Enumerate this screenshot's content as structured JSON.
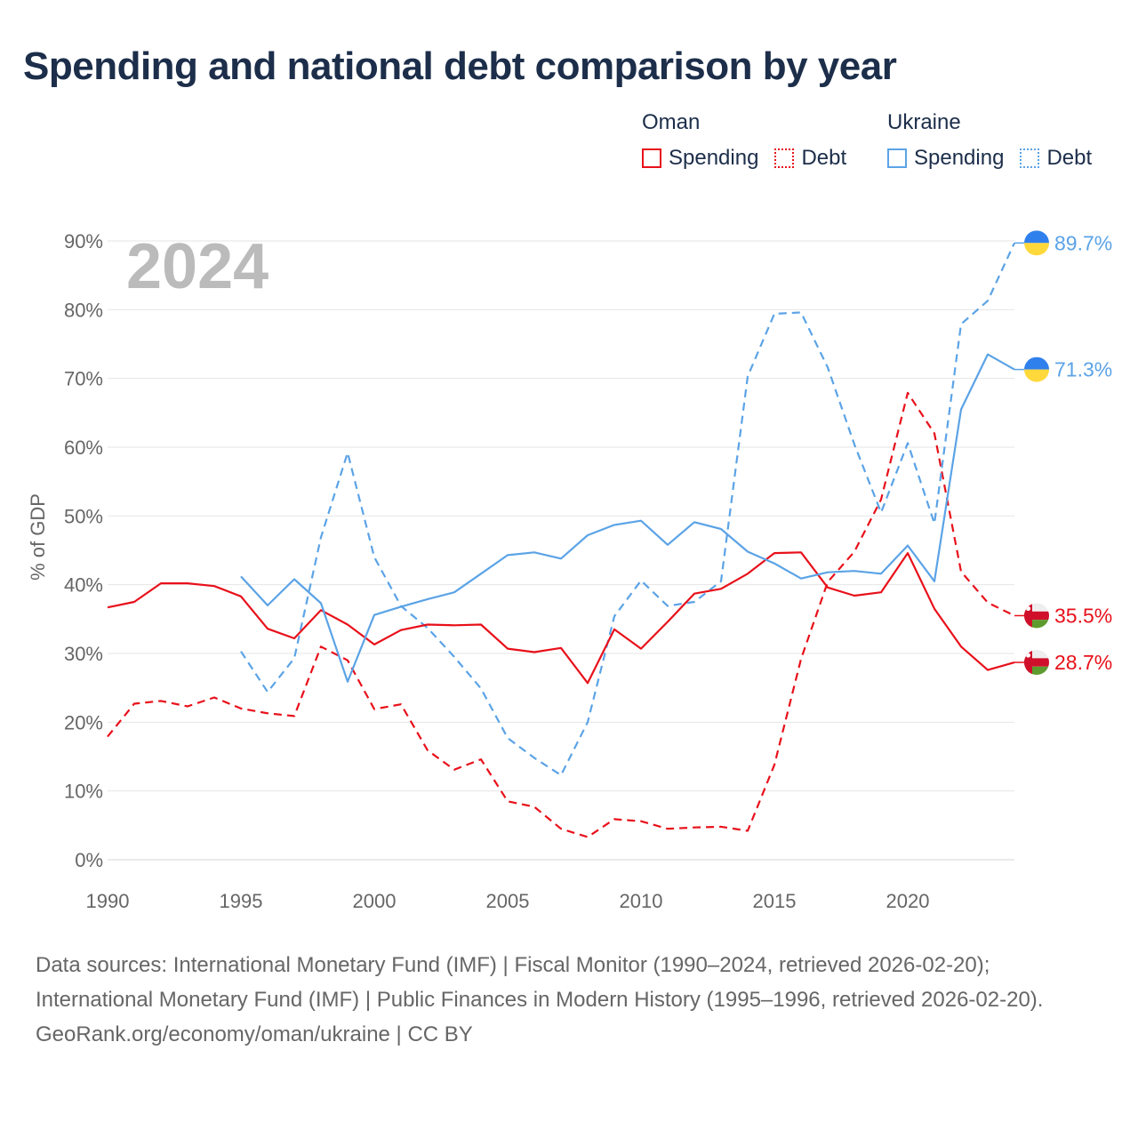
{
  "title": "Spending and national debt comparison by year",
  "legend": {
    "groups": [
      {
        "country": "Oman",
        "spending_label": "Spending",
        "debt_label": "Debt",
        "color": "#e8101a"
      },
      {
        "country": "Ukraine",
        "spending_label": "Spending",
        "debt_label": "Debt",
        "color": "#5ba3e6"
      }
    ]
  },
  "chart_data": {
    "type": "line",
    "title": "Spending and national debt comparison by year",
    "year_label": "2024",
    "ylabel": "% of GDP",
    "xlabel": "",
    "xlim": [
      1990,
      2024
    ],
    "ylim": [
      0,
      90
    ],
    "x_ticks": [
      1990,
      1995,
      2000,
      2005,
      2010,
      2015,
      2020
    ],
    "y_ticks": [
      0,
      10,
      20,
      30,
      40,
      50,
      60,
      70,
      80,
      90
    ],
    "y_tick_labels": [
      "0%",
      "10%",
      "20%",
      "30%",
      "40%",
      "50%",
      "60%",
      "70%",
      "80%",
      "90%"
    ],
    "grid": true,
    "series": [
      {
        "name": "Oman Spending",
        "country": "Oman",
        "kind": "Spending",
        "color": "#e8101a",
        "dashed": false,
        "flag": "oman",
        "end_label": "28.7%",
        "points": [
          [
            1990,
            36.7
          ],
          [
            1991,
            37.5
          ],
          [
            1992,
            40.2
          ],
          [
            1993,
            40.2
          ],
          [
            1994,
            39.8
          ],
          [
            1995,
            38.3
          ],
          [
            1996,
            33.6
          ],
          [
            1997,
            32.2
          ],
          [
            1998,
            36.3
          ],
          [
            1999,
            34.2
          ],
          [
            2000,
            31.3
          ],
          [
            2001,
            33.4
          ],
          [
            2002,
            34.2
          ],
          [
            2003,
            34.1
          ],
          [
            2004,
            34.2
          ],
          [
            2005,
            30.7
          ],
          [
            2006,
            30.2
          ],
          [
            2007,
            30.8
          ],
          [
            2008,
            25.7
          ],
          [
            2009,
            33.5
          ],
          [
            2010,
            30.7
          ],
          [
            2011,
            34.6
          ],
          [
            2012,
            38.7
          ],
          [
            2013,
            39.4
          ],
          [
            2014,
            41.6
          ],
          [
            2015,
            44.6
          ],
          [
            2016,
            44.7
          ],
          [
            2017,
            39.6
          ],
          [
            2018,
            38.4
          ],
          [
            2019,
            38.9
          ],
          [
            2020,
            44.6
          ],
          [
            2021,
            36.5
          ],
          [
            2022,
            31.0
          ],
          [
            2023,
            27.6
          ],
          [
            2024,
            28.7
          ]
        ]
      },
      {
        "name": "Oman Debt",
        "country": "Oman",
        "kind": "Debt",
        "color": "#e8101a",
        "dashed": true,
        "flag": "oman",
        "end_label": "35.5%",
        "points": [
          [
            1990,
            17.9
          ],
          [
            1991,
            22.7
          ],
          [
            1992,
            23.1
          ],
          [
            1993,
            22.3
          ],
          [
            1994,
            23.6
          ],
          [
            1995,
            22.0
          ],
          [
            1996,
            21.3
          ],
          [
            1997,
            20.9
          ],
          [
            1998,
            31.0
          ],
          [
            1999,
            29.0
          ],
          [
            2000,
            21.9
          ],
          [
            2001,
            22.6
          ],
          [
            2002,
            15.9
          ],
          [
            2003,
            13.1
          ],
          [
            2004,
            14.6
          ],
          [
            2005,
            8.5
          ],
          [
            2006,
            7.7
          ],
          [
            2007,
            4.5
          ],
          [
            2008,
            3.3
          ],
          [
            2009,
            5.9
          ],
          [
            2010,
            5.6
          ],
          [
            2011,
            4.5
          ],
          [
            2012,
            4.7
          ],
          [
            2013,
            4.8
          ],
          [
            2014,
            4.2
          ],
          [
            2015,
            13.8
          ],
          [
            2016,
            29.2
          ],
          [
            2017,
            40.4
          ],
          [
            2018,
            44.8
          ],
          [
            2019,
            52.4
          ],
          [
            2020,
            67.9
          ],
          [
            2021,
            62.0
          ],
          [
            2022,
            41.9
          ],
          [
            2023,
            37.4
          ],
          [
            2024,
            35.5
          ]
        ]
      },
      {
        "name": "Ukraine Spending",
        "country": "Ukraine",
        "kind": "Spending",
        "color": "#5ba3e6",
        "dashed": false,
        "flag": "ukraine",
        "end_label": "71.3%",
        "points": [
          [
            1995,
            41.2
          ],
          [
            1996,
            37.0
          ],
          [
            1997,
            40.8
          ],
          [
            1998,
            37.3
          ],
          [
            1999,
            25.9
          ],
          [
            2000,
            35.6
          ],
          [
            2001,
            36.8
          ],
          [
            2002,
            37.9
          ],
          [
            2003,
            38.9
          ],
          [
            2004,
            41.6
          ],
          [
            2005,
            44.3
          ],
          [
            2006,
            44.7
          ],
          [
            2007,
            43.8
          ],
          [
            2008,
            47.2
          ],
          [
            2009,
            48.7
          ],
          [
            2010,
            49.3
          ],
          [
            2011,
            45.8
          ],
          [
            2012,
            49.1
          ],
          [
            2013,
            48.1
          ],
          [
            2014,
            44.8
          ],
          [
            2015,
            43.1
          ],
          [
            2016,
            40.9
          ],
          [
            2017,
            41.8
          ],
          [
            2018,
            42.0
          ],
          [
            2019,
            41.6
          ],
          [
            2020,
            45.7
          ],
          [
            2021,
            40.5
          ],
          [
            2022,
            65.5
          ],
          [
            2023,
            73.5
          ],
          [
            2024,
            71.3
          ]
        ]
      },
      {
        "name": "Ukraine Debt",
        "country": "Ukraine",
        "kind": "Debt",
        "color": "#5ba3e6",
        "dashed": true,
        "flag": "ukraine",
        "end_label": "89.7%",
        "points": [
          [
            1995,
            30.3
          ],
          [
            1996,
            24.4
          ],
          [
            1997,
            29.3
          ],
          [
            1998,
            46.9
          ],
          [
            1999,
            59.2
          ],
          [
            2000,
            44.0
          ],
          [
            2001,
            36.9
          ],
          [
            2002,
            33.7
          ],
          [
            2003,
            29.5
          ],
          [
            2004,
            24.9
          ],
          [
            2005,
            17.7
          ],
          [
            2006,
            14.8
          ],
          [
            2007,
            12.3
          ],
          [
            2008,
            20.0
          ],
          [
            2009,
            35.4
          ],
          [
            2010,
            40.6
          ],
          [
            2011,
            36.9
          ],
          [
            2012,
            37.5
          ],
          [
            2013,
            40.5
          ],
          [
            2014,
            70.3
          ],
          [
            2015,
            79.4
          ],
          [
            2016,
            79.6
          ],
          [
            2017,
            71.6
          ],
          [
            2018,
            60.4
          ],
          [
            2019,
            50.5
          ],
          [
            2020,
            60.6
          ],
          [
            2021,
            48.9
          ],
          [
            2022,
            77.9
          ],
          [
            2023,
            81.3
          ],
          [
            2024,
            89.7
          ]
        ]
      }
    ]
  },
  "sources": {
    "line1": "Data sources: International Monetary Fund (IMF) | Fiscal Monitor (1990–2024, retrieved 2026-02-20); International Monetary Fund (IMF) | Public Finances in Modern History (1995–1996, retrieved 2026-02-20).",
    "line2": "GeoRank.org/economy/oman/ukraine | CC BY"
  }
}
